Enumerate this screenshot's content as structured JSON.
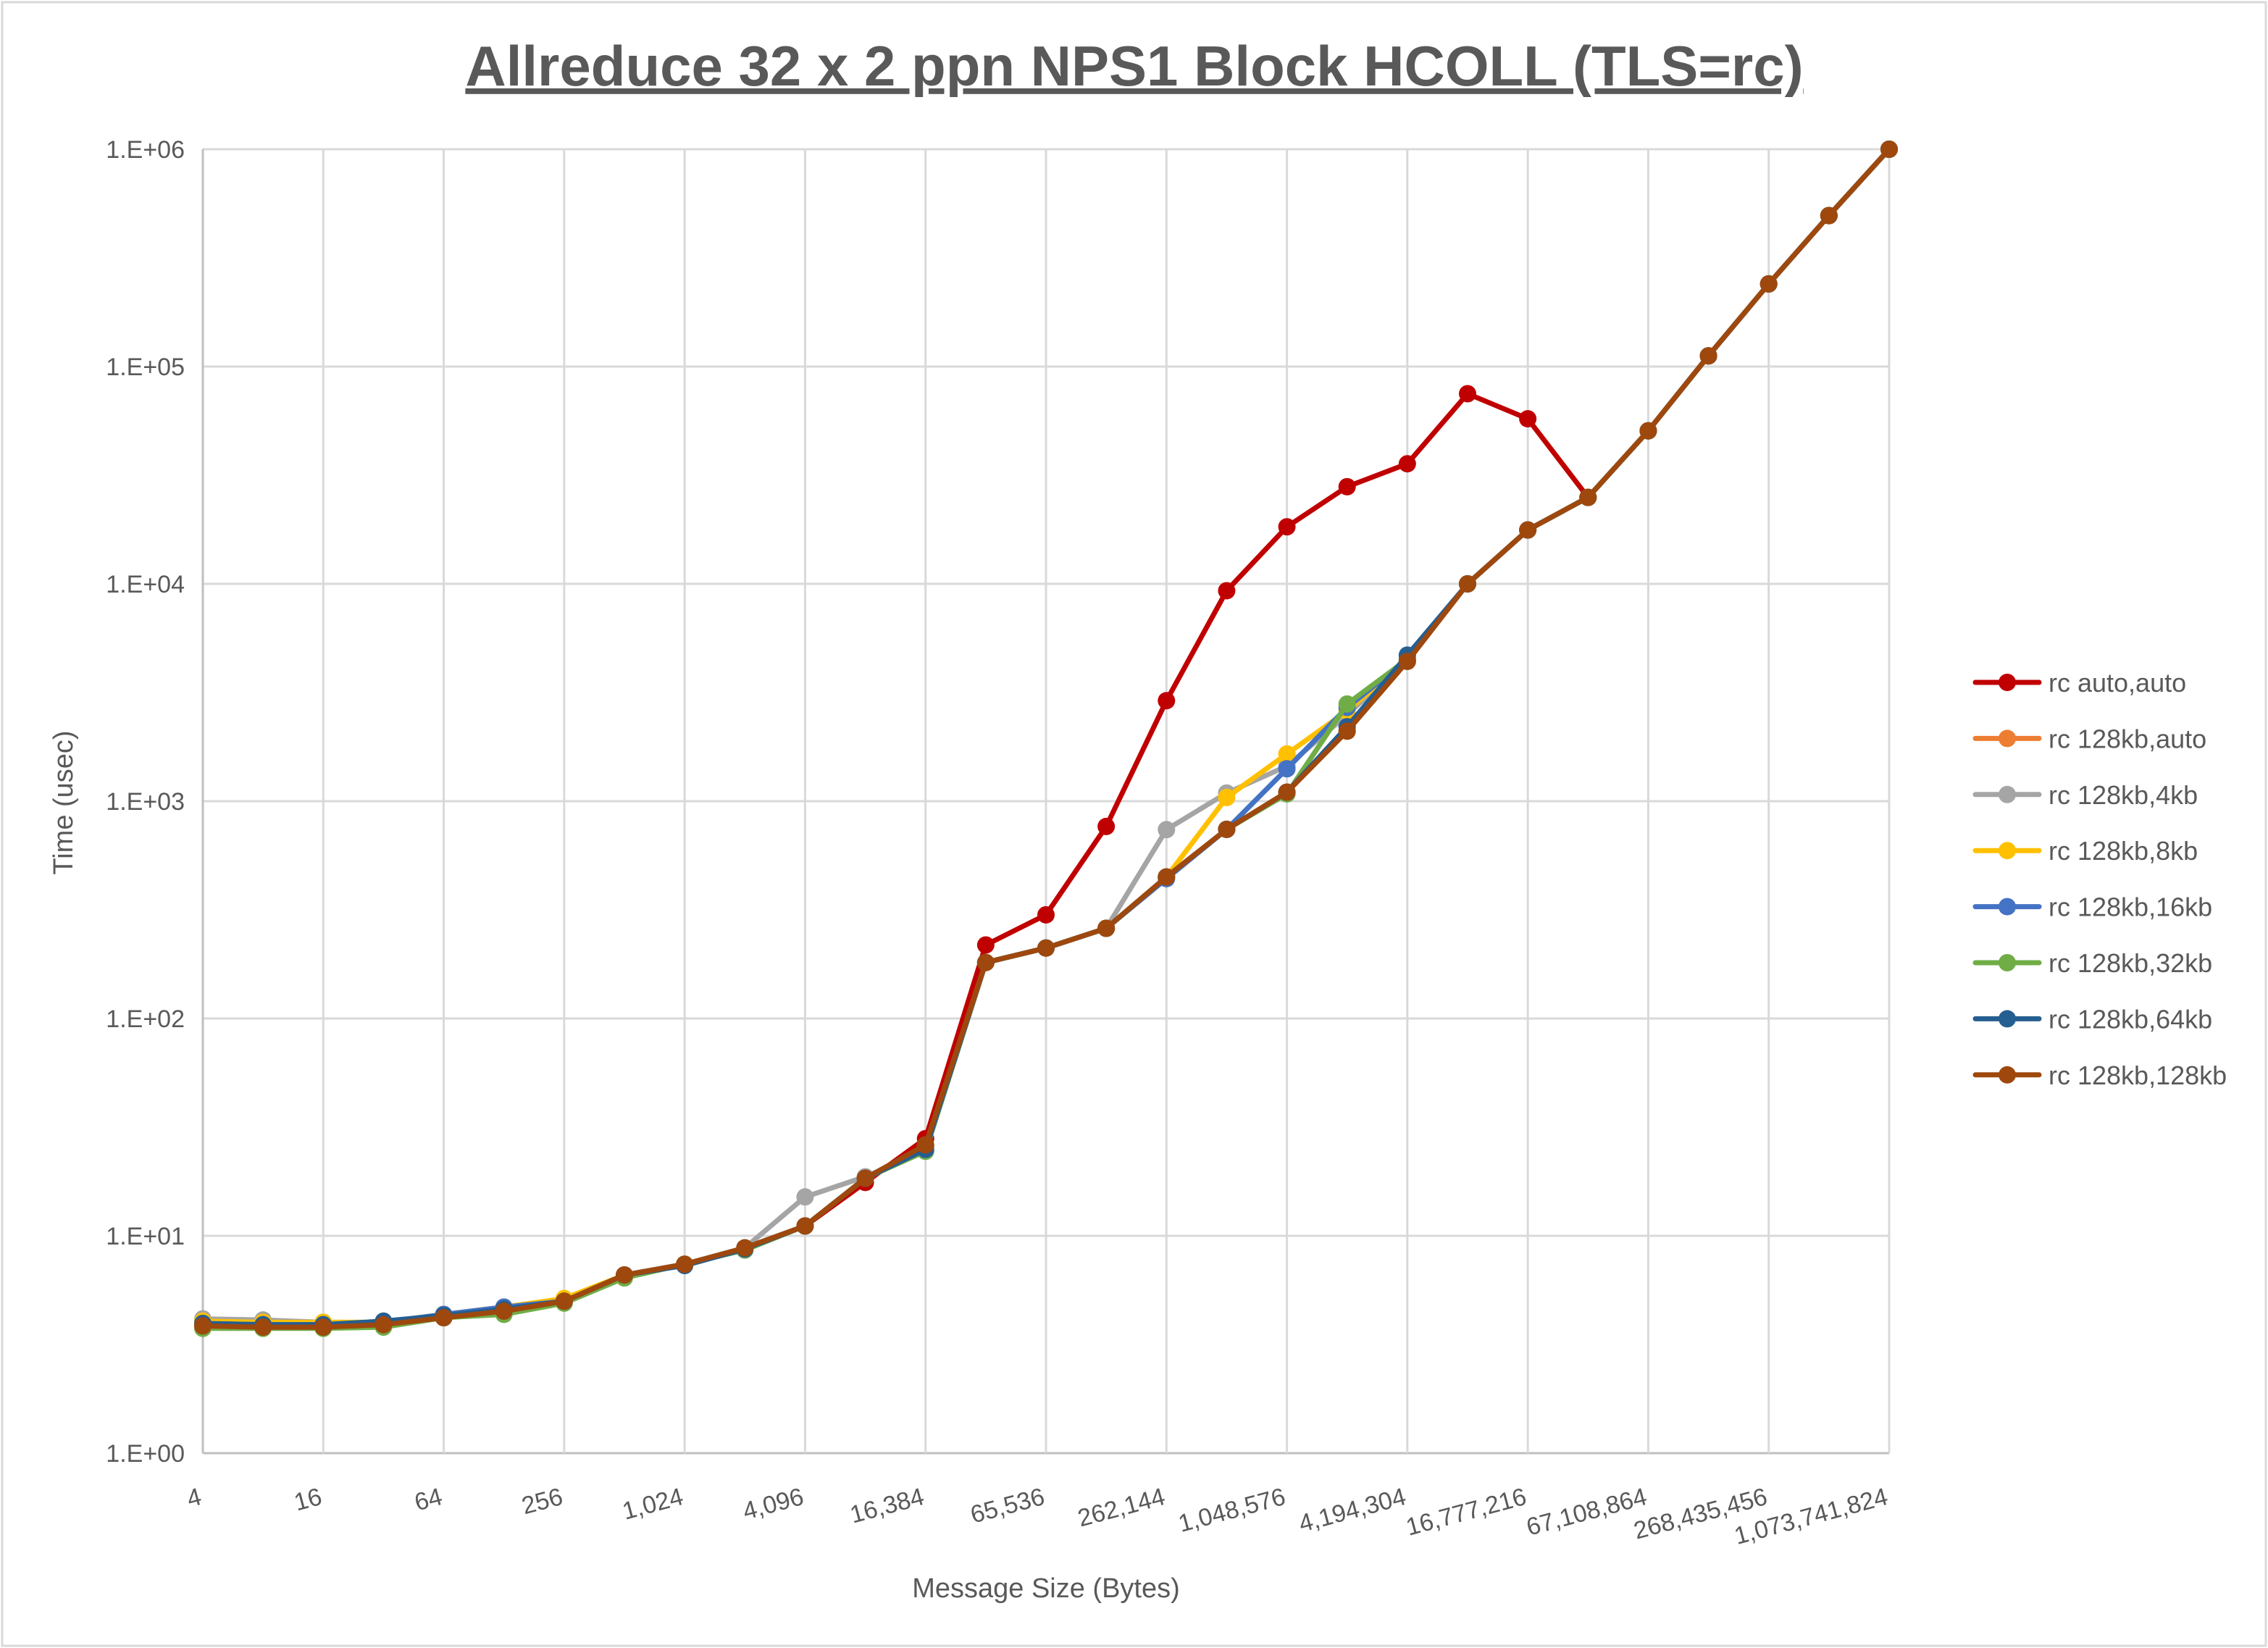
{
  "chart_data": {
    "type": "line",
    "title": "Allreduce 32 x 2 ppn NPS1 Block HCOLL (TLS=rc)",
    "xlabel": "Message Size (Bytes)",
    "ylabel": "Time (usec)",
    "x_scale": "log2",
    "y_scale": "log10",
    "ylim": [
      1,
      1000000
    ],
    "grid": true,
    "legend_placement": "right",
    "x": [
      4,
      8,
      16,
      32,
      64,
      128,
      256,
      512,
      1024,
      2048,
      4096,
      8192,
      16384,
      32768,
      65536,
      131072,
      262144,
      524288,
      1048576,
      2097152,
      4194304,
      8388608,
      16777216,
      33554432,
      67108864,
      134217728,
      268435456,
      536870912,
      1073741824
    ],
    "x_tick_labels": [
      "4",
      "16",
      "64",
      "256",
      "1,024",
      "4,096",
      "16,384",
      "65,536",
      "262,144",
      "1,048,576",
      "4,194,304",
      "16,777,216",
      "67,108,864",
      "268,435,456",
      "1,073,741,824"
    ],
    "y_tick_labels": [
      "1.E+00",
      "1.E+01",
      "1.E+02",
      "1.E+03",
      "1.E+04",
      "1.E+05",
      "1.E+06"
    ],
    "series": [
      {
        "name": "rc auto,auto",
        "color": "#C00000",
        "values": [
          3.9,
          3.85,
          3.85,
          3.9,
          4.2,
          4.5,
          5.0,
          6.6,
          7.4,
          8.8,
          11.1,
          17.6,
          28,
          218,
          300,
          765,
          2900,
          9300,
          18300,
          28000,
          35700,
          75000,
          57500,
          25000,
          50600,
          112000,
          240000,
          495000,
          1000000
        ]
      },
      {
        "name": "rc 128kb,auto",
        "color": "#ED7D31",
        "values": [
          3.85,
          3.8,
          3.8,
          3.9,
          4.2,
          4.5,
          5.0,
          6.6,
          7.4,
          8.8,
          11.1,
          18.4,
          26,
          181,
          211,
          260,
          448,
          742,
          1100,
          2100,
          4400,
          10000,
          17700,
          25000,
          50600,
          112000,
          240000,
          495000,
          1000000
        ]
      },
      {
        "name": "rc 128kb,4kb",
        "color": "#A5A5A5",
        "values": [
          4.15,
          4.1,
          4.0,
          4.0,
          4.3,
          4.6,
          5.0,
          6.6,
          7.4,
          8.8,
          15.1,
          18.7,
          24.5,
          181,
          211,
          260,
          740,
          1090,
          1450,
          2500,
          4500,
          10000,
          17700,
          25000,
          50600,
          112000,
          240000,
          495000,
          1000000
        ]
      },
      {
        "name": "rc 128kb,8kb",
        "color": "#FFC000",
        "values": [
          4.05,
          4.0,
          4.0,
          4.0,
          4.35,
          4.7,
          5.15,
          6.6,
          7.4,
          8.8,
          11.1,
          18.4,
          26,
          181,
          211,
          260,
          448,
          1040,
          1650,
          2600,
          4500,
          10000,
          17700,
          25000,
          50600,
          112000,
          240000,
          495000,
          1000000
        ]
      },
      {
        "name": "rc 128kb,16kb",
        "color": "#4472C4",
        "values": [
          3.95,
          3.9,
          3.9,
          4.0,
          4.35,
          4.7,
          5.0,
          6.6,
          7.4,
          8.8,
          11.1,
          18.4,
          26,
          181,
          211,
          260,
          440,
          742,
          1410,
          2700,
          4500,
          10000,
          17700,
          25000,
          50600,
          112000,
          240000,
          495000,
          1000000
        ]
      },
      {
        "name": "rc 128kb,32kb",
        "color": "#70AD47",
        "values": [
          3.75,
          3.75,
          3.75,
          3.8,
          4.2,
          4.35,
          4.9,
          6.4,
          7.4,
          8.6,
          11.1,
          18.4,
          24.5,
          181,
          211,
          260,
          448,
          742,
          1080,
          2800,
          4500,
          10000,
          17700,
          25000,
          50600,
          112000,
          240000,
          495000,
          1000000
        ]
      },
      {
        "name": "rc 128kb,64kb",
        "color": "#255E91",
        "values": [
          3.95,
          3.9,
          3.9,
          4.05,
          4.3,
          4.6,
          5.0,
          6.6,
          7.3,
          8.7,
          11.1,
          18.4,
          25,
          181,
          211,
          260,
          448,
          742,
          1100,
          2200,
          4700,
          10000,
          17700,
          25000,
          50600,
          112000,
          240000,
          495000,
          1000000
        ]
      },
      {
        "name": "rc 128kb,128kb",
        "color": "#9E480E",
        "values": [
          3.85,
          3.8,
          3.8,
          3.9,
          4.2,
          4.5,
          5.0,
          6.6,
          7.4,
          8.8,
          11.1,
          18.4,
          26.2,
          181,
          211,
          260,
          448,
          742,
          1100,
          2100,
          4400,
          10000,
          17700,
          25000,
          50600,
          112000,
          240000,
          495000,
          1000000
        ]
      }
    ]
  }
}
